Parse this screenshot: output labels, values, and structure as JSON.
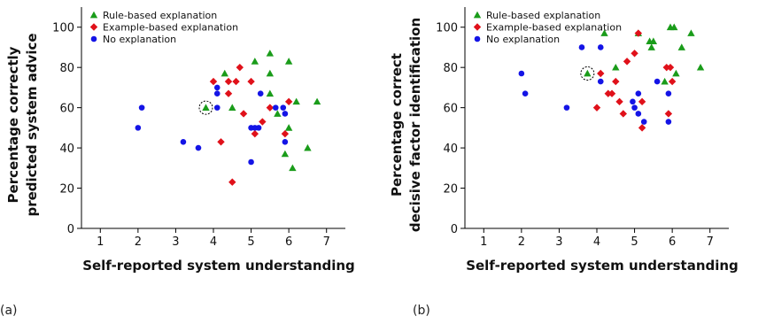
{
  "panels": [
    {
      "label": "(a)"
    },
    {
      "label": "(b)"
    }
  ],
  "colors": {
    "rule": "#1a9c1a",
    "example": "#e0111a",
    "none": "#1414e6"
  },
  "chart_data": [
    {
      "type": "scatter",
      "xlabel": "Self-reported system understanding",
      "ylabel_lines": [
        "Percentage correctly",
        "predicted system advice"
      ],
      "xlim": [
        0.5,
        7.5
      ],
      "ylim": [
        0,
        110
      ],
      "xticks": [
        1,
        2,
        3,
        4,
        5,
        6,
        7
      ],
      "yticks": [
        0,
        20,
        40,
        60,
        80,
        100
      ],
      "grid": false,
      "legend_position": "top-left",
      "highlight": {
        "x": 3.8,
        "y": 60
      },
      "series": [
        {
          "name": "Rule-based explanation",
          "marker": "triangle",
          "color": "#1a9c1a",
          "points": [
            [
              4.3,
              77
            ],
            [
              4.5,
              60
            ],
            [
              5.1,
              83
            ],
            [
              5.5,
              87
            ],
            [
              5.5,
              77
            ],
            [
              5.5,
              67
            ],
            [
              5.7,
              57
            ],
            [
              6.0,
              83
            ],
            [
              6.0,
              50
            ],
            [
              6.2,
              63
            ],
            [
              6.5,
              40
            ],
            [
              6.75,
              63
            ],
            [
              6.1,
              30
            ],
            [
              5.9,
              37
            ],
            [
              3.8,
              60
            ]
          ]
        },
        {
          "name": "Example-based explanation",
          "marker": "diamond",
          "color": "#e0111a",
          "points": [
            [
              4.0,
              73
            ],
            [
              4.4,
              67
            ],
            [
              4.4,
              73
            ],
            [
              4.6,
              73
            ],
            [
              4.7,
              80
            ],
            [
              4.2,
              43
            ],
            [
              4.5,
              23
            ],
            [
              4.8,
              57
            ],
            [
              5.0,
              73
            ],
            [
              5.1,
              47
            ],
            [
              5.3,
              53
            ],
            [
              5.5,
              60
            ],
            [
              5.9,
              47
            ],
            [
              6.0,
              63
            ]
          ]
        },
        {
          "name": "No explanation",
          "marker": "circle",
          "color": "#1414e6",
          "points": [
            [
              2.0,
              50
            ],
            [
              2.1,
              60
            ],
            [
              3.2,
              43
            ],
            [
              3.6,
              40
            ],
            [
              4.1,
              70
            ],
            [
              4.1,
              67
            ],
            [
              4.1,
              60
            ],
            [
              5.0,
              50
            ],
            [
              5.0,
              33
            ],
            [
              5.1,
              50
            ],
            [
              5.25,
              67
            ],
            [
              5.2,
              50
            ],
            [
              5.65,
              60
            ],
            [
              5.85,
              60
            ],
            [
              5.9,
              43
            ],
            [
              5.9,
              57
            ]
          ]
        }
      ]
    },
    {
      "type": "scatter",
      "xlabel": "Self-reported system understanding",
      "ylabel_lines": [
        "Percentage correct",
        "decisive factor identification"
      ],
      "xlim": [
        0.5,
        7.5
      ],
      "ylim": [
        0,
        110
      ],
      "xticks": [
        1,
        2,
        3,
        4,
        5,
        6,
        7
      ],
      "yticks": [
        0,
        20,
        40,
        60,
        80,
        100
      ],
      "grid": false,
      "legend_position": "top-left",
      "highlight": {
        "x": 3.75,
        "y": 77
      },
      "series": [
        {
          "name": "Rule-based explanation",
          "marker": "triangle",
          "color": "#1a9c1a",
          "points": [
            [
              4.2,
              97
            ],
            [
              4.5,
              80
            ],
            [
              5.1,
              97
            ],
            [
              5.4,
              93
            ],
            [
              5.45,
              90
            ],
            [
              5.5,
              93
            ],
            [
              5.8,
              73
            ],
            [
              5.95,
              100
            ],
            [
              6.05,
              100
            ],
            [
              6.1,
              77
            ],
            [
              6.25,
              90
            ],
            [
              6.5,
              97
            ],
            [
              6.75,
              80
            ],
            [
              3.75,
              77
            ]
          ]
        },
        {
          "name": "Example-based explanation",
          "marker": "diamond",
          "color": "#e0111a",
          "points": [
            [
              4.0,
              60
            ],
            [
              4.1,
              77
            ],
            [
              4.3,
              67
            ],
            [
              4.4,
              67
            ],
            [
              4.5,
              73
            ],
            [
              4.6,
              63
            ],
            [
              4.7,
              57
            ],
            [
              4.8,
              83
            ],
            [
              5.0,
              87
            ],
            [
              5.1,
              97
            ],
            [
              5.2,
              63
            ],
            [
              5.2,
              50
            ],
            [
              5.85,
              80
            ],
            [
              5.9,
              57
            ],
            [
              5.95,
              80
            ],
            [
              6.0,
              73
            ]
          ]
        },
        {
          "name": "No explanation",
          "marker": "circle",
          "color": "#1414e6",
          "points": [
            [
              2.0,
              77
            ],
            [
              2.1,
              67
            ],
            [
              3.2,
              60
            ],
            [
              3.6,
              90
            ],
            [
              4.1,
              90
            ],
            [
              4.1,
              73
            ],
            [
              4.95,
              63
            ],
            [
              5.0,
              60
            ],
            [
              5.1,
              67
            ],
            [
              5.1,
              57
            ],
            [
              5.25,
              53
            ],
            [
              5.9,
              67
            ],
            [
              5.9,
              53
            ],
            [
              5.6,
              73
            ]
          ]
        }
      ]
    }
  ]
}
